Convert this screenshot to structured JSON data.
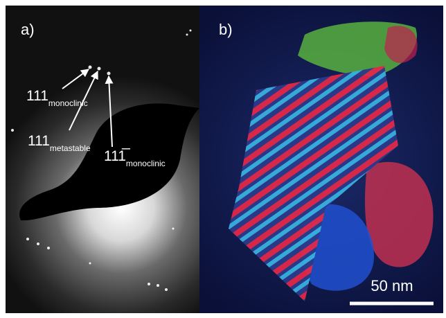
{
  "panels": [
    {
      "label": "a)",
      "annotations": [
        {
          "index": "111",
          "subscript": "monoclinic"
        },
        {
          "index": "111",
          "subscript": "metastable"
        },
        {
          "index": "111̅",
          "subscript": "monoclinic"
        }
      ]
    },
    {
      "label": "b)",
      "scale_bar": "50 nm"
    }
  ]
}
